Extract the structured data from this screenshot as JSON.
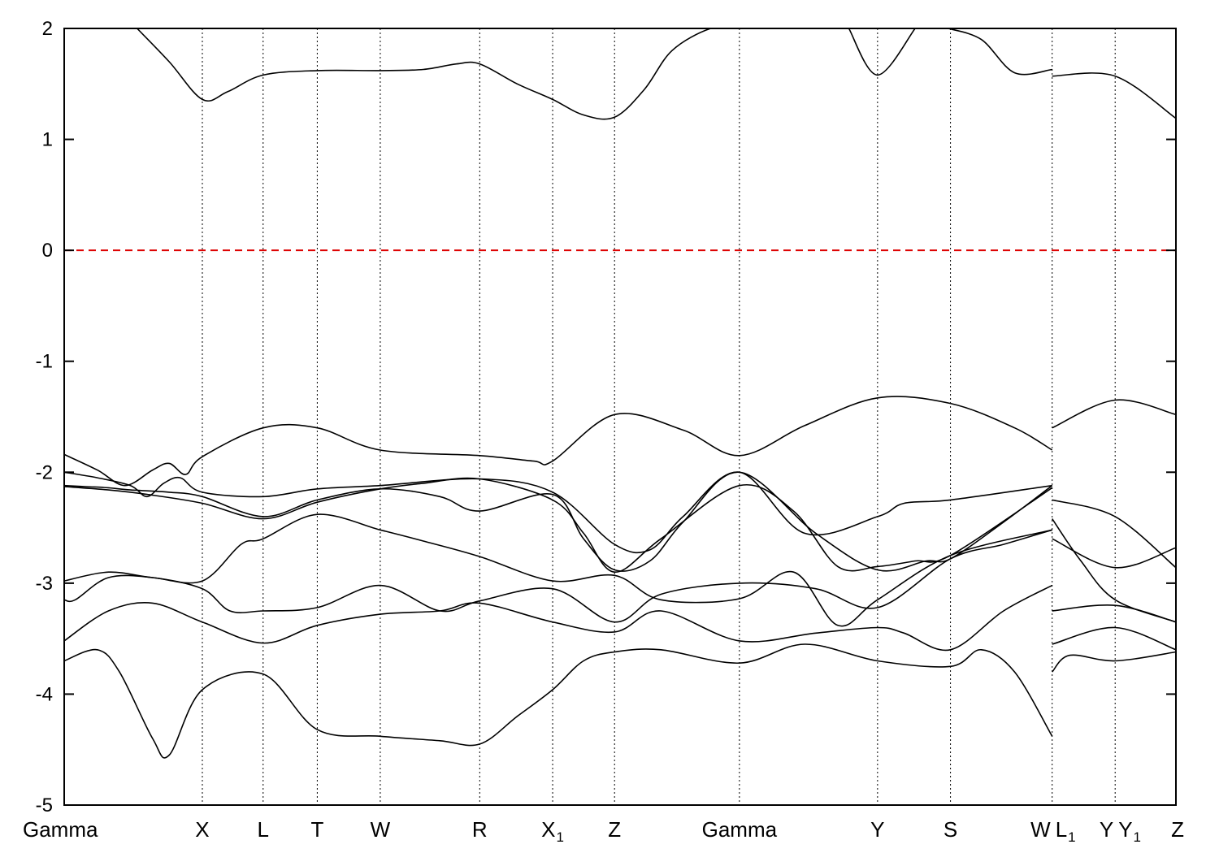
{
  "chart_data": {
    "type": "line",
    "title": "",
    "xlabel": "",
    "ylabel": "",
    "ylim": [
      -5,
      2
    ],
    "y_ticks": [
      -5,
      -4,
      -3,
      -2,
      -1,
      0,
      1,
      2
    ],
    "grid": "vertical dotted lines at high-symmetry points",
    "fermi_level": {
      "y": 0,
      "color": "#dd0000",
      "style": "dashed"
    },
    "high_symmetry_points": [
      {
        "label": "Gamma",
        "sub": "",
        "x": 0
      },
      {
        "label": "X",
        "sub": "",
        "x": 1.25
      },
      {
        "label": "L",
        "sub": "",
        "x": 1.8
      },
      {
        "label": "T",
        "sub": "",
        "x": 2.29
      },
      {
        "label": "W",
        "sub": "",
        "x": 2.86
      },
      {
        "label": "R",
        "sub": "",
        "x": 3.76
      },
      {
        "label": "X",
        "sub": "1",
        "x": 4.42
      },
      {
        "label": "Z",
        "sub": "",
        "x": 4.98
      },
      {
        "label": "Gamma",
        "sub": "",
        "x": 6.11
      },
      {
        "label": "Y",
        "sub": "",
        "x": 7.36
      },
      {
        "label": "S",
        "sub": "",
        "x": 8.02
      },
      {
        "label": "W",
        "sub": "",
        "x": 8.94
      },
      {
        "label": "L",
        "sub": "1",
        "x": 8.94
      },
      {
        "label": "Y",
        "sub": "",
        "x": 9.51
      },
      {
        "label": "Y",
        "sub": "1",
        "x": 9.51
      },
      {
        "label": "Z",
        "sub": "",
        "x": 10.06
      }
    ],
    "x_range": [
      0,
      10.06
    ],
    "line_color": "#000000",
    "series": [
      {
        "segments": [
          {
            "x": [
              0.66,
              0.95,
              1.25,
              1.48,
              1.8,
              2.29,
              2.86,
              3.25,
              3.55,
              3.76,
              4.1,
              4.42,
              4.7,
              4.98,
              5.25,
              5.5,
              5.85,
              6.11
            ],
            "y": [
              2.0,
              1.7,
              1.36,
              1.43,
              1.58,
              1.62,
              1.62,
              1.63,
              1.68,
              1.68,
              1.5,
              1.36,
              1.22,
              1.2,
              1.45,
              1.8,
              2.0,
              2.0
            ]
          },
          {
            "x": [
              7.1,
              7.36,
              7.7
            ],
            "y": [
              2.0,
              1.58,
              2.0
            ]
          },
          {
            "x": [
              8.0,
              8.3,
              8.6,
              8.94
            ],
            "y": [
              2.0,
              1.9,
              1.6,
              1.63
            ]
          },
          {
            "x": [
              8.94,
              9.51,
              10.06
            ],
            "y": [
              1.57,
              1.57,
              1.19
            ]
          }
        ]
      },
      {
        "segments": [
          {
            "x": [
              0,
              0.3,
              0.55,
              0.8,
              0.95,
              1.1,
              1.25,
              1.8,
              2.29,
              2.86,
              3.76,
              4.25,
              4.42,
              4.98,
              5.6,
              6.11,
              6.7,
              7.36,
              8.02,
              8.6,
              8.94
            ],
            "y": [
              -1.84,
              -1.98,
              -2.12,
              -1.98,
              -1.92,
              -2.02,
              -1.86,
              -1.6,
              -1.6,
              -1.8,
              -1.85,
              -1.9,
              -1.9,
              -1.48,
              -1.62,
              -1.85,
              -1.58,
              -1.33,
              -1.38,
              -1.6,
              -1.8
            ]
          },
          {
            "x": [
              8.94,
              9.51,
              10.06
            ],
            "y": [
              -1.6,
              -1.35,
              -1.48
            ]
          }
        ]
      },
      {
        "segments": [
          {
            "x": [
              0,
              0.3,
              0.6,
              0.75,
              0.9,
              1.05,
              1.25,
              1.8,
              2.29,
              2.86,
              3.76,
              4.42,
              4.98,
              5.3,
              5.6,
              6.11,
              6.7,
              7.36,
              7.6,
              8.02,
              8.94
            ],
            "y": [
              -2.0,
              -2.05,
              -2.12,
              -2.22,
              -2.1,
              -2.05,
              -2.18,
              -2.22,
              -2.15,
              -2.12,
              -2.06,
              -2.18,
              -2.65,
              -2.7,
              -2.4,
              -2.0,
              -2.55,
              -2.4,
              -2.28,
              -2.25,
              -2.12
            ]
          },
          {
            "x": [
              8.94,
              9.51,
              10.06
            ],
            "y": [
              -2.25,
              -2.4,
              -2.86
            ]
          }
        ]
      },
      {
        "segments": [
          {
            "x": [
              0,
              0.4,
              0.75,
              1.25,
              1.8,
              2.29,
              2.86,
              3.25,
              3.76,
              4.42,
              4.7,
              4.98,
              5.4,
              6.11,
              6.6,
              7.0,
              7.36,
              7.7,
              8.02,
              8.94
            ],
            "y": [
              -2.13,
              -2.16,
              -2.2,
              -2.28,
              -2.42,
              -2.27,
              -2.15,
              -2.1,
              -2.06,
              -2.25,
              -2.55,
              -2.9,
              -2.6,
              -2.12,
              -2.35,
              -2.85,
              -2.85,
              -2.8,
              -2.75,
              -2.14
            ]
          },
          {
            "x": [
              8.94,
              9.2,
              9.51,
              10.06
            ],
            "y": [
              -2.42,
              -2.8,
              -3.15,
              -3.35
            ]
          }
        ]
      },
      {
        "segments": [
          {
            "x": [
              0,
              0.4,
              0.8,
              1.25,
              1.6,
              1.8,
              2.29,
              2.86,
              3.25,
              3.76,
              4.42,
              4.98,
              5.4,
              6.11,
              6.6,
              7.0,
              7.36,
              8.02,
              8.94
            ],
            "y": [
              -2.98,
              -2.9,
              -2.95,
              -2.98,
              -2.65,
              -2.6,
              -2.38,
              -2.52,
              -2.62,
              -2.76,
              -2.98,
              -2.93,
              -3.15,
              -3.14,
              -2.9,
              -3.38,
              -3.15,
              -2.75,
              -2.52
            ]
          },
          {
            "x": [
              8.94,
              9.51,
              10.06
            ],
            "y": [
              -2.6,
              -2.86,
              -2.68
            ]
          }
        ]
      },
      {
        "segments": [
          {
            "x": [
              0,
              0.1,
              0.4,
              0.8,
              1.25,
              1.5,
              1.8,
              2.29,
              2.86,
              3.4,
              3.76,
              4.42,
              4.98,
              5.4,
              6.11,
              6.8,
              7.36,
              8.02,
              8.5,
              8.94
            ],
            "y": [
              -3.15,
              -3.15,
              -2.95,
              -2.95,
              -3.05,
              -3.25,
              -3.25,
              -3.22,
              -3.02,
              -3.25,
              -3.16,
              -3.05,
              -3.35,
              -3.1,
              -3.0,
              -3.05,
              -3.22,
              -2.78,
              -2.65,
              -2.52
            ]
          },
          {
            "x": [
              8.94,
              9.51,
              10.06
            ],
            "y": [
              -3.25,
              -3.2,
              -3.35
            ]
          }
        ]
      },
      {
        "segments": [
          {
            "x": [
              0,
              0.4,
              0.8,
              1.25,
              1.8,
              2.29,
              2.86,
              3.4,
              3.76,
              4.42,
              4.98,
              5.4,
              6.11,
              6.8,
              7.36,
              7.6,
              8.02,
              8.5,
              8.94
            ],
            "y": [
              -3.52,
              -3.25,
              -3.18,
              -3.35,
              -3.54,
              -3.38,
              -3.28,
              -3.25,
              -3.18,
              -3.35,
              -3.44,
              -3.25,
              -3.52,
              -3.45,
              -3.4,
              -3.45,
              -3.6,
              -3.25,
              -3.02
            ]
          },
          {
            "x": [
              8.94,
              9.51,
              10.06
            ],
            "y": [
              -3.55,
              -3.4,
              -3.6
            ]
          }
        ]
      },
      {
        "segments": [
          {
            "x": [
              0,
              0.3,
              0.5,
              0.8,
              0.95,
              1.25,
              1.8,
              2.29,
              2.86,
              3.4,
              3.76,
              4.1,
              4.42,
              4.7,
              4.98,
              5.4,
              6.11,
              6.7,
              7.36,
              8.02,
              8.3,
              8.6,
              8.94
            ],
            "y": [
              -3.7,
              -3.6,
              -3.8,
              -4.4,
              -4.55,
              -3.96,
              -3.82,
              -4.32,
              -4.38,
              -4.42,
              -4.45,
              -4.2,
              -3.96,
              -3.7,
              -3.62,
              -3.6,
              -3.72,
              -3.55,
              -3.7,
              -3.75,
              -3.6,
              -3.8,
              -4.38
            ]
          },
          {
            "x": [
              8.94,
              9.1,
              9.51,
              10.06
            ],
            "y": [
              -3.8,
              -3.65,
              -3.7,
              -3.62
            ]
          }
        ]
      },
      {
        "segments": [
          {
            "x": [
              0,
              0.2,
              0.4,
              0.6,
              0.95,
              1.25,
              1.8,
              2.29,
              2.86,
              3.4,
              3.76,
              4.42,
              4.7,
              4.98,
              5.3,
              5.6,
              6.11,
              6.8,
              7.36,
              7.8,
              8.02,
              8.5,
              8.94
            ],
            "y": [
              -2.12,
              -2.13,
              -2.14,
              -2.16,
              -2.18,
              -2.22,
              -2.4,
              -2.25,
              -2.15,
              -2.22,
              -2.35,
              -2.2,
              -2.6,
              -2.88,
              -2.8,
              -2.45,
              -2.0,
              -2.55,
              -2.88,
              -2.8,
              -2.78,
              -2.45,
              -2.12
            ]
          }
        ]
      }
    ]
  }
}
